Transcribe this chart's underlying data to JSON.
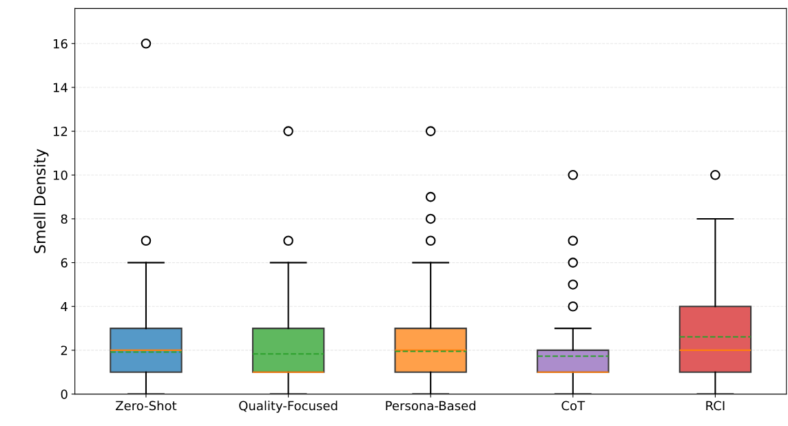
{
  "chart_data": {
    "type": "box",
    "ylabel": "Smell Density",
    "categories": [
      "Zero-Shot",
      "Quality-Focused",
      "Persona-Based",
      "CoT",
      "RCI"
    ],
    "colors": [
      "#5599c8",
      "#5fb85f",
      "#ffa04a",
      "#ac8dcc",
      "#e05c5d"
    ],
    "boxes": [
      {
        "low": 0,
        "q1": 1,
        "median": 2,
        "q3": 3,
        "high": 6,
        "mean": 1.92,
        "outliers": [
          7,
          16
        ]
      },
      {
        "low": 0,
        "q1": 1,
        "median": 1,
        "q3": 3,
        "high": 6,
        "mean": 1.83,
        "outliers": [
          7,
          12
        ]
      },
      {
        "low": 0,
        "q1": 1,
        "median": 2,
        "q3": 3,
        "high": 6,
        "mean": 1.95,
        "outliers": [
          7,
          8,
          9,
          12
        ]
      },
      {
        "low": 0,
        "q1": 1,
        "median": 1,
        "q3": 2,
        "high": 3,
        "mean": 1.73,
        "outliers": [
          4,
          5,
          6,
          7,
          10
        ]
      },
      {
        "low": 0,
        "q1": 1,
        "median": 2,
        "q3": 4,
        "high": 8,
        "mean": 2.61,
        "outliers": [
          10
        ]
      }
    ],
    "ylim": [
      0,
      17.6
    ],
    "yticks": [
      0,
      2,
      4,
      6,
      8,
      10,
      12,
      14,
      16
    ],
    "grid": "y",
    "legend": false
  }
}
